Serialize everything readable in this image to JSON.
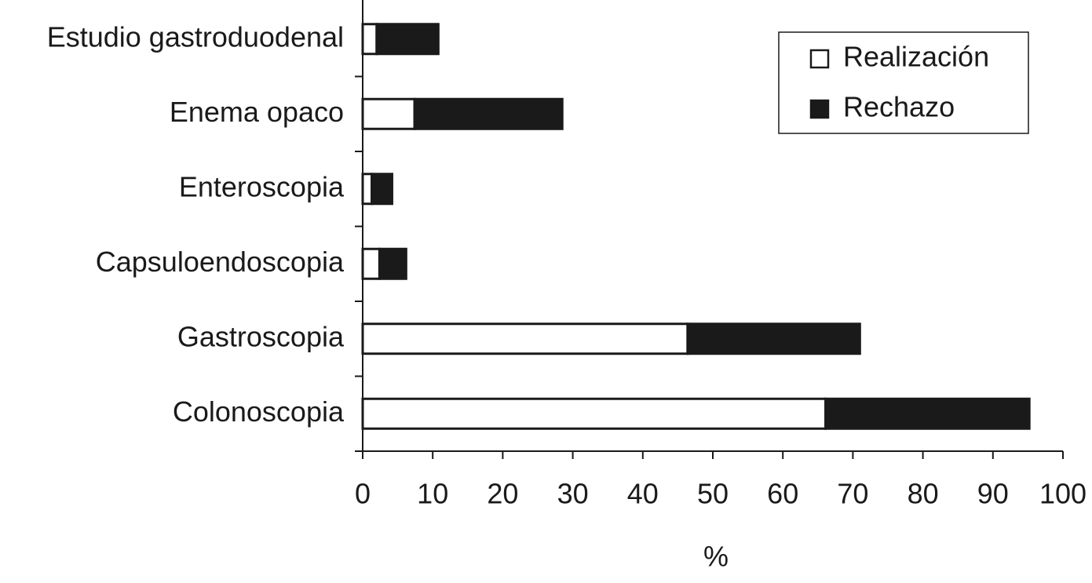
{
  "chart_data": {
    "type": "stacked-barh",
    "categories": [
      "Estudio gastroduodenal",
      "Enema opaco",
      "Enteroscopia",
      "Capsuloendoscopia",
      "Gastroscopia",
      "Colonoscopia"
    ],
    "series": [
      {
        "name": "Realización",
        "color": "#ffffff",
        "values": [
          2,
          7.4,
          1.3,
          2.4,
          46.4,
          66.1
        ]
      },
      {
        "name": "Rechazo",
        "color": "#1a1a1a",
        "values": [
          8.8,
          21.1,
          2.9,
          3.8,
          24.6,
          29.1
        ]
      }
    ],
    "x_label": "%",
    "xlim": [
      0,
      100
    ],
    "xticks": [
      0,
      10,
      20,
      30,
      40,
      50,
      60,
      70,
      80,
      90,
      100
    ],
    "legend": "upper right"
  }
}
